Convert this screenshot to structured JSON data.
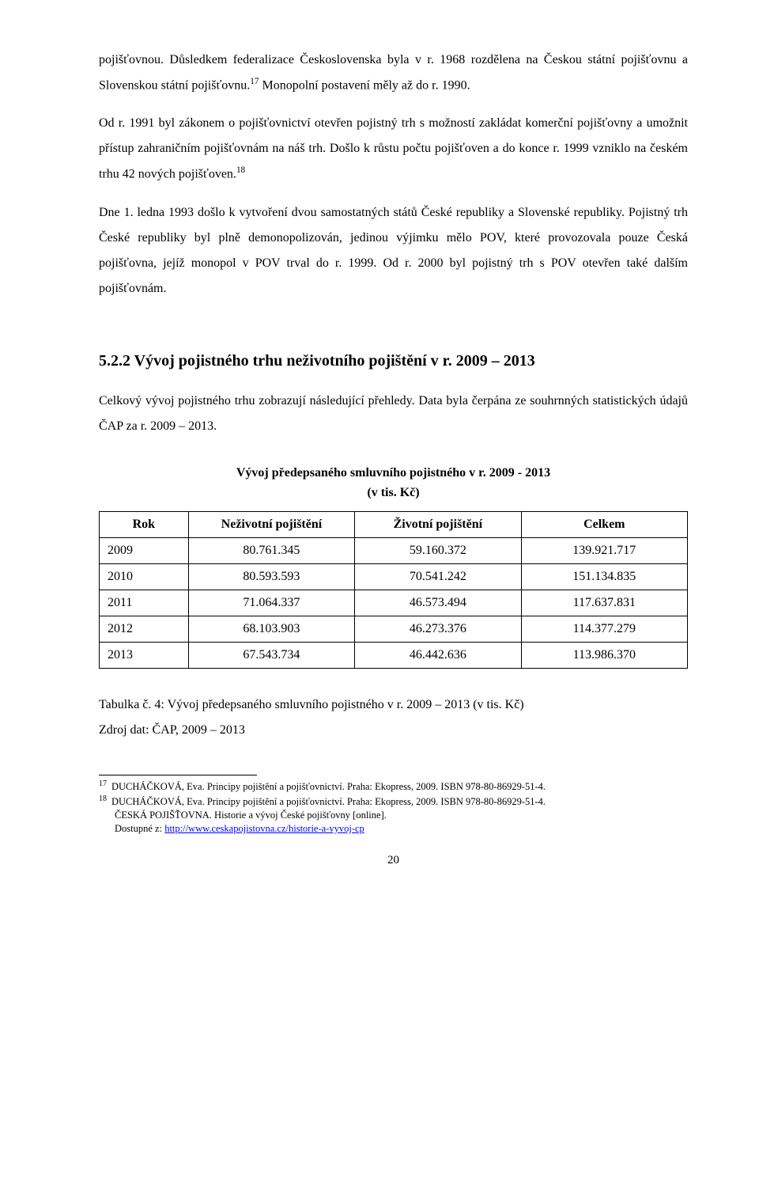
{
  "paragraphs": {
    "p1a": "pojišťovnou. Důsledkem federalizace Československa byla v r. 1968 rozdělena na Českou státní pojišťovnu a Slovenskou státní pojišťovnu.",
    "p1sup": "17",
    "p1b": " Monopolní postavení měly až do r. 1990.",
    "p2a": "Od r. 1991 byl zákonem o pojišťovnictví otevřen pojistný trh s možností zakládat komerční pojišťovny a umožnit přístup zahraničním pojišťovnám na náš trh. Došlo k růstu počtu pojišťoven a do konce r. 1999 vzniklo na českém trhu 42 nových pojišťoven.",
    "p2sup": "18",
    "p3": "Dne  1. ledna 1993 došlo k vytvoření dvou samostatných států České republiky a Slovenské republiky. Pojistný trh České republiky byl plně demonopolizován, jedinou výjimku mělo POV, které provozovala pouze Česká pojišťovna, jejíž monopol v POV trval do r. 1999. Od r. 2000 byl pojistný trh s POV otevřen také dalším pojišťovnám."
  },
  "heading": "5.2.2 Vývoj pojistného trhu neživotního pojištění v  r. 2009 – 2013",
  "intro": "Celkový vývoj pojistného trhu zobrazují následující přehledy. Data byla čerpána ze souhrnných statistických údajů ČAP za r. 2009 – 2013.",
  "table": {
    "title_line1": "Vývoj předepsaného smluvního pojistného v r. 2009 - 2013",
    "title_line2": "(v tis. Kč)",
    "columns": [
      "Rok",
      "Neživotní pojištění",
      "Životní pojištění",
      "Celkem"
    ],
    "rows": [
      [
        "2009",
        "80.761.345",
        "59.160.372",
        "139.921.717"
      ],
      [
        "2010",
        "80.593.593",
        "70.541.242",
        "151.134.835"
      ],
      [
        "2011",
        "71.064.337",
        "46.573.494",
        "117.637.831"
      ],
      [
        "2012",
        "68.103.903",
        "46.273.376",
        "114.377.279"
      ],
      [
        "2013",
        "67.543.734",
        "46.442.636",
        "113.986.370"
      ]
    ]
  },
  "caption_line1": "Tabulka č. 4: Vývoj předepsaného smluvního pojistného v r. 2009 – 2013 (v tis. Kč)",
  "caption_line2": "Zdroj dat: ČAP, 2009 – 2013",
  "footnotes": {
    "f17_num": "17",
    "f17": "DUCHÁČKOVÁ, Eva. Principy pojištění a pojišťovnictví. Praha: Ekopress, 2009. ISBN 978-80-86929-51-4.",
    "f18_num": "18",
    "f18a": "DUCHÁČKOVÁ, Eva. Principy pojištění a pojišťovnictví. Praha: Ekopress, 2009. ISBN 978-80-86929-51-4.",
    "f18b": "ČESKÁ POJIŠŤOVNA. Historie a vývoj České pojišťovny [online].",
    "f18c_prefix": "Dostupné z: ",
    "f18c_link": "http://www.ceskapojistovna.cz/historie-a-vyvoj-cp"
  },
  "page_number": "20"
}
